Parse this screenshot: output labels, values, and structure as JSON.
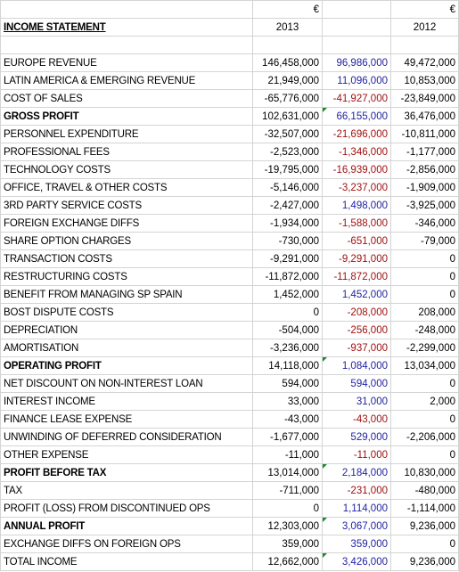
{
  "header": {
    "currency_2013": "€",
    "currency_2012": "€",
    "title": "INCOME STATEMENT",
    "year_2013": "2013",
    "year_2012": "2012"
  },
  "colors": {
    "change_positive": "#1f1fa0",
    "change_negative": "#a01010",
    "comment_marker": "#1a8a2a"
  },
  "rows": [
    {
      "label": "EUROPE REVENUE",
      "v2013": "146,458,000",
      "change": "96,986,000",
      "v2012": "49,472,000"
    },
    {
      "label": "LATIN AMERICA & EMERGING REVENUE",
      "v2013": "21,949,000",
      "change": "11,096,000",
      "v2012": "10,853,000"
    },
    {
      "label": "COST OF SALES",
      "v2013": "-65,776,000",
      "change": "-41,927,000",
      "v2012": "-23,849,000"
    },
    {
      "label": "GROSS PROFIT",
      "v2013": "102,631,000",
      "change": "66,155,000",
      "v2012": "36,476,000"
    },
    {
      "label": "PERSONNEL EXPENDITURE",
      "v2013": "-32,507,000",
      "change": "-21,696,000",
      "v2012": "-10,811,000"
    },
    {
      "label": "PROFESSIONAL FEES",
      "v2013": "-2,523,000",
      "change": "-1,346,000",
      "v2012": "-1,177,000"
    },
    {
      "label": "TECHNOLOGY COSTS",
      "v2013": "-19,795,000",
      "change": "-16,939,000",
      "v2012": "-2,856,000"
    },
    {
      "label": "OFFICE, TRAVEL & OTHER COSTS",
      "v2013": "-5,146,000",
      "change": "-3,237,000",
      "v2012": "-1,909,000"
    },
    {
      "label": "3RD PARTY SERVICE COSTS",
      "v2013": "-2,427,000",
      "change": "1,498,000",
      "v2012": "-3,925,000"
    },
    {
      "label": "FOREIGN EXCHANGE DIFFS",
      "v2013": "-1,934,000",
      "change": "-1,588,000",
      "v2012": "-346,000"
    },
    {
      "label": "SHARE OPTION CHARGES",
      "v2013": "-730,000",
      "change": "-651,000",
      "v2012": "-79,000"
    },
    {
      "label": "TRANSACTION COSTS",
      "v2013": "-9,291,000",
      "change": "-9,291,000",
      "v2012": "0"
    },
    {
      "label": "RESTRUCTURING COSTS",
      "v2013": "-11,872,000",
      "change": "-11,872,000",
      "v2012": "0"
    },
    {
      "label": "BENEFIT FROM MANAGING SP SPAIN",
      "v2013": "1,452,000",
      "change": "1,452,000",
      "v2012": "0"
    },
    {
      "label": "BOST DISPUTE COSTS",
      "v2013": "0",
      "change": "-208,000",
      "v2012": "208,000"
    },
    {
      "label": "DEPRECIATION",
      "v2013": "-504,000",
      "change": "-256,000",
      "v2012": "-248,000"
    },
    {
      "label": "AMORTISATION",
      "v2013": "-3,236,000",
      "change": "-937,000",
      "v2012": "-2,299,000"
    },
    {
      "label": "OPERATING PROFIT",
      "v2013": "14,118,000",
      "change": "1,084,000",
      "v2012": "13,034,000"
    },
    {
      "label": "NET DISCOUNT ON NON-INTEREST LOAN",
      "v2013": "594,000",
      "change": "594,000",
      "v2012": "0"
    },
    {
      "label": "INTEREST INCOME",
      "v2013": "33,000",
      "change": "31,000",
      "v2012": "2,000"
    },
    {
      "label": "FINANCE LEASE EXPENSE",
      "v2013": "-43,000",
      "change": "-43,000",
      "v2012": "0"
    },
    {
      "label": "UNWINDING OF DEFERRED CONSIDERATION",
      "v2013": "-1,677,000",
      "change": "529,000",
      "v2012": "-2,206,000"
    },
    {
      "label": "OTHER EXPENSE",
      "v2013": "-11,000",
      "change": "-11,000",
      "v2012": "0"
    },
    {
      "label": "PROFIT BEFORE TAX",
      "v2013": "13,014,000",
      "change": "2,184,000",
      "v2012": "10,830,000"
    },
    {
      "label": "TAX",
      "v2013": "-711,000",
      "change": "-231,000",
      "v2012": "-480,000"
    },
    {
      "label": "PROFIT (LOSS) FROM DISCONTINUED OPS",
      "v2013": "0",
      "change": "1,114,000",
      "v2012": "-1,114,000"
    },
    {
      "label": "ANNUAL PROFIT",
      "v2013": "12,303,000",
      "change": "3,067,000",
      "v2012": "9,236,000"
    },
    {
      "label": "EXCHANGE DIFFS ON FOREIGN OPS",
      "v2013": "359,000",
      "change": "359,000",
      "v2012": "0"
    },
    {
      "label": "TOTAL INCOME",
      "v2013": "12,662,000",
      "change": "3,426,000",
      "v2012": "9,236,000"
    }
  ]
}
